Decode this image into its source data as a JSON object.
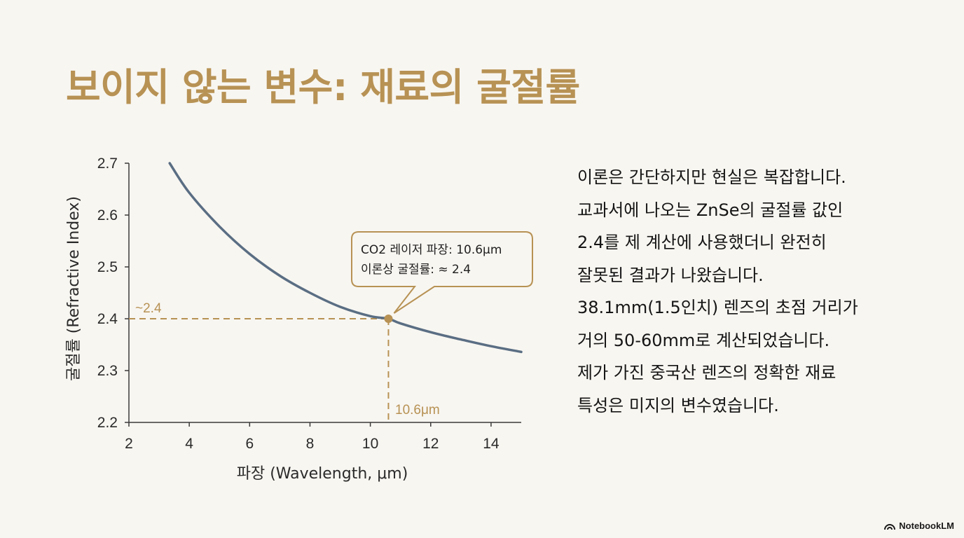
{
  "title": "보이지 않는 변수: 재료의 굴절률",
  "chart_data": {
    "type": "line",
    "xlabel": "파장 (Wavelength, μm)",
    "ylabel": "굴절률 (Refractive Index)",
    "xlim": [
      2,
      15
    ],
    "ylim": [
      2.2,
      2.7
    ],
    "x_ticks": [
      "2",
      "4",
      "6",
      "8",
      "10",
      "12",
      "14"
    ],
    "y_ticks": [
      "2.7",
      "2.6",
      "2.5",
      "2.4",
      "2.3",
      "2.2"
    ],
    "series": [
      {
        "name": "굴절률",
        "x": [
          3.35,
          4,
          5,
          6,
          7,
          8,
          9,
          10,
          10.6,
          11,
          12,
          13,
          14,
          15
        ],
        "y": [
          2.7,
          2.643,
          2.578,
          2.525,
          2.483,
          2.45,
          2.423,
          2.405,
          2.4,
          2.391,
          2.374,
          2.36,
          2.347,
          2.336
        ]
      }
    ],
    "highlight_point": {
      "x": 10.6,
      "y": 2.4
    },
    "ref_y_label": "~2.4",
    "ref_x_label": "10.6μm",
    "callout": {
      "line1": "CO2 레이저 파장: 10.6μm",
      "line2": "이론상 굴절률: ≈ 2.4"
    },
    "colors": {
      "curve": "#5a6e83",
      "accent": "#b79254",
      "axis": "#3a3a3a"
    }
  },
  "body_lines": [
    "이론은 간단하지만 현실은 복잡합니다.",
    "교과서에 나오는 ZnSe의 굴절률 값인",
    "2.4를 제 계산에 사용했더니 완전히",
    "잘못된 결과가 나왔습니다.",
    "38.1mm(1.5인치) 렌즈의 초점 거리가",
    "거의 50-60mm로 계산되었습니다.",
    "제가 가진 중국산 렌즈의 정확한 재료",
    "특성은 미지의 변수였습니다."
  ],
  "brand": {
    "icon": "notebooklm-logo-icon",
    "label": "NotebookLM"
  }
}
